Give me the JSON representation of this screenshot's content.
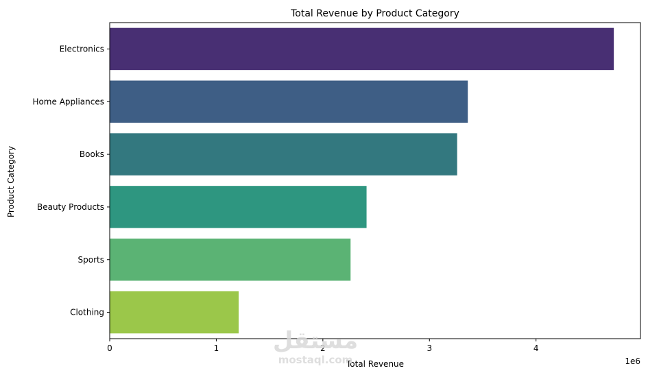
{
  "chart_data": {
    "type": "bar",
    "orientation": "horizontal",
    "title": "Total Revenue by Product Category",
    "xlabel": "Total Revenue",
    "ylabel": "Product Category",
    "x_offset_label": "1e6",
    "xlim": [
      0,
      4.98
    ],
    "x_ticks": [
      0,
      1,
      2,
      3,
      4
    ],
    "x_tick_labels": [
      "0",
      "1",
      "2",
      "3",
      "4"
    ],
    "categories": [
      "Electronics",
      "Home Appliances",
      "Books",
      "Beauty Products",
      "Sports",
      "Clothing"
    ],
    "values": [
      4.73,
      3.36,
      3.26,
      2.41,
      2.26,
      1.21
    ],
    "colors": [
      "#482f73",
      "#3e5e85",
      "#33787f",
      "#2e9680",
      "#5bb374",
      "#9bc74a"
    ],
    "grid": false,
    "legend": "none"
  },
  "watermark": {
    "arabic": "مستقل",
    "latin": "mostaql.com"
  }
}
